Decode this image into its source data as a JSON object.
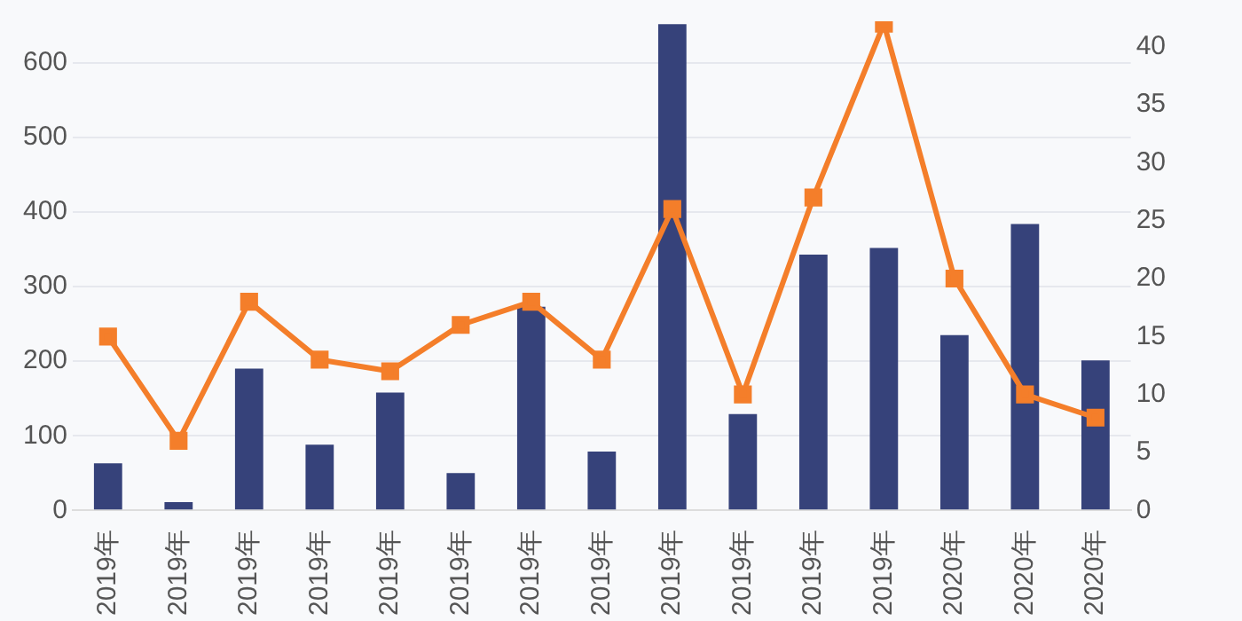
{
  "chart_data": {
    "type": "bar",
    "categories": [
      "2019年",
      "2019年",
      "2019年",
      "2019年",
      "2019年",
      "2019年",
      "2019年",
      "2019年",
      "2019年",
      "2019年",
      "2019年",
      "2019年",
      "2020年",
      "2020年",
      "2020年"
    ],
    "series": [
      {
        "color": "#36427a",
        "values": [
          63,
          11,
          190,
          88,
          158,
          50,
          273,
          79,
          652,
          129,
          343,
          352,
          235,
          384,
          201
        ]
      },
      {
        "type": "line",
        "axis": "y2",
        "color": "#f47e2a",
        "marker": "square",
        "values": [
          15,
          6,
          18,
          13,
          12,
          16,
          18,
          13,
          26,
          10,
          27,
          42,
          20,
          10,
          8
        ]
      }
    ],
    "ylim": [
      0,
      656
    ],
    "yticks": [
      0,
      100,
      200,
      300,
      400,
      500,
      600
    ],
    "y2lim": [
      0,
      42.2
    ],
    "y2ticks": [
      0,
      5,
      10,
      15,
      20,
      25,
      30,
      35,
      40
    ],
    "grid": "y",
    "legend": false
  }
}
